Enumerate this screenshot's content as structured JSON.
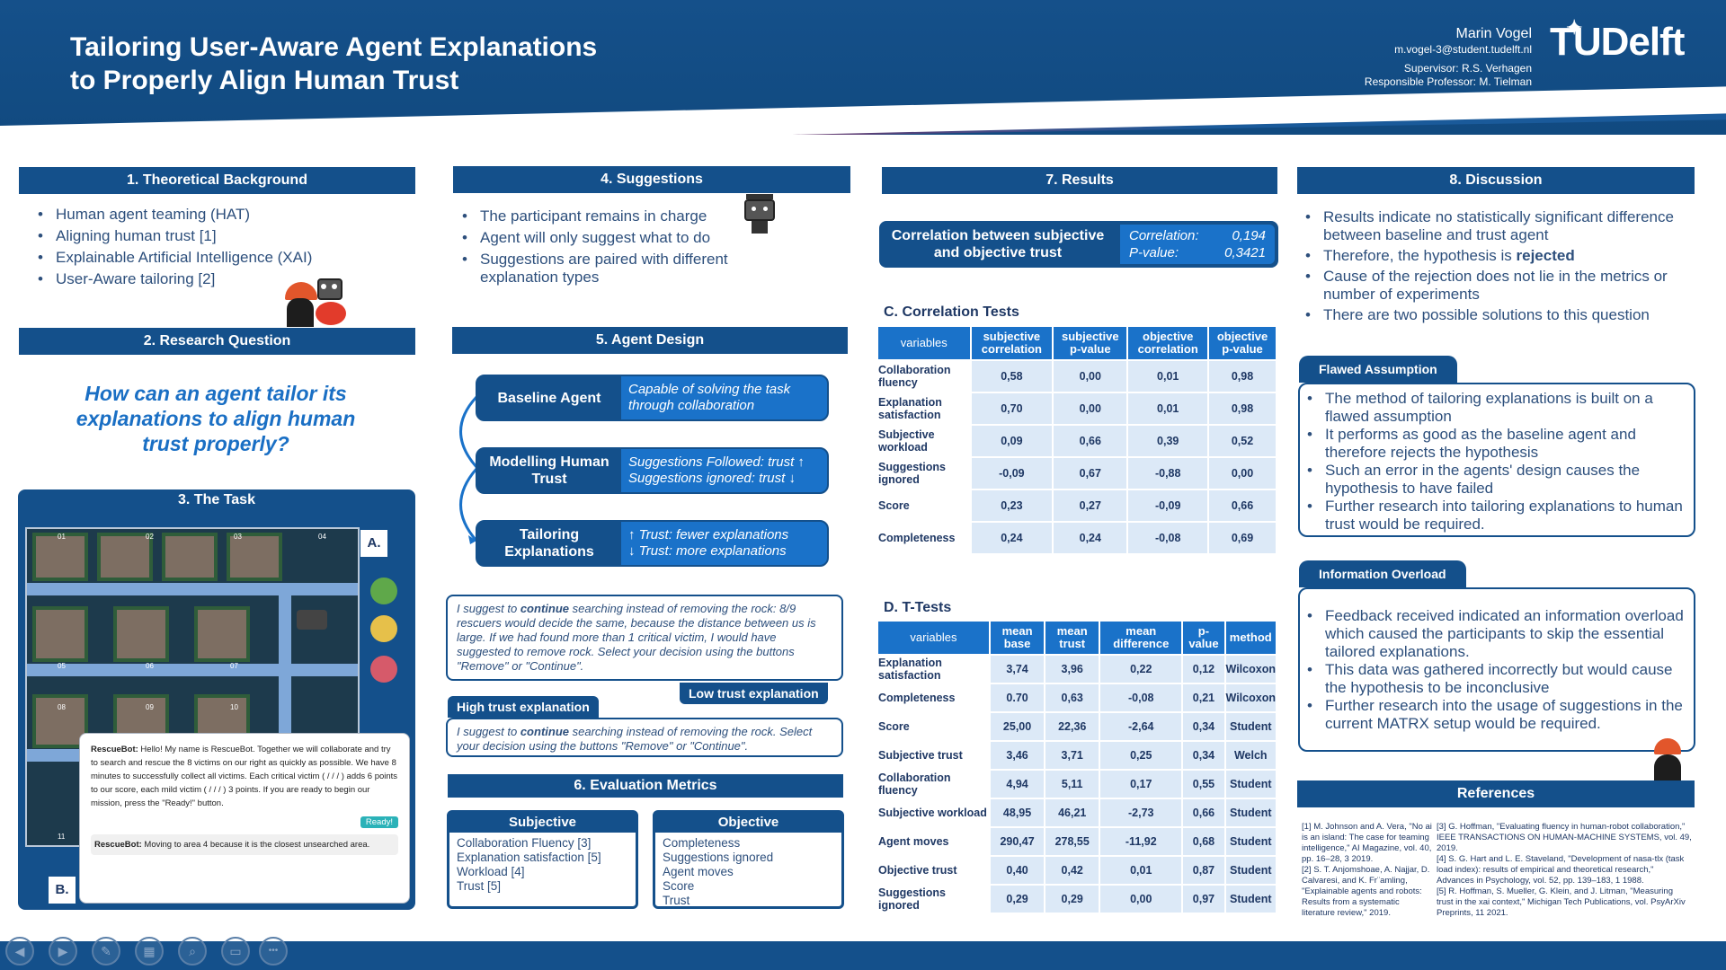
{
  "header": {
    "title_line1": "Tailoring User-Aware Agent Explanations",
    "title_line2": "to Properly Align Human Trust",
    "author": "Marin Vogel",
    "email": "m.vogel-3@student.tudelft.nl",
    "supervisor": "Supervisor: R.S. Verhagen",
    "professor": "Responsible Professor: M. Tielman",
    "logo": "TUDelft"
  },
  "s1": {
    "title": "1. Theoretical Background",
    "items": [
      "Human agent teaming (HAT)",
      "Aligning human trust [1]",
      "Explainable Artificial Intelligence (XAI)",
      "User-Aware tailoring [2]"
    ]
  },
  "s2": {
    "title": "2. Research Question",
    "question": "How can an agent tailor its explanations to align human trust properly?"
  },
  "s3": {
    "title": "3. The Task",
    "label_a": "A.",
    "label_b": "B.",
    "areas": [
      "01",
      "02",
      "03",
      "04",
      "05",
      "06",
      "07",
      "08",
      "09",
      "10",
      "11"
    ],
    "chat1_name": "RescueBot:",
    "chat1_text": " Hello! My name is RescueBot. Together we will collaborate and try to search and rescue the 8 victims on our right as quickly as possible. We have 8 minutes to successfully collect all victims. Each critical victim ( / / / ) adds 6 points to our score, each mild victim ( / / / ) 3 points. If you are ready to begin our mission, press the \"Ready!\" button.",
    "ready": "Ready!",
    "chat2_name": "RescueBot:",
    "chat2_text": " Moving to area 4 because it is the closest unsearched area."
  },
  "s4": {
    "title": "4. Suggestions",
    "items": [
      "The participant remains in charge",
      "Agent will only suggest what to do",
      "Suggestions are paired with different explanation types"
    ]
  },
  "s5": {
    "title": "5. Agent Design",
    "boxes": [
      {
        "left": "Baseline Agent",
        "right1": "Capable of solving the task",
        "right2": "through collaboration"
      },
      {
        "left": "Modelling Human Trust",
        "right1": "Suggestions Followed: trust ↑",
        "right2": "Suggestions ignored:   trust ↓"
      },
      {
        "left": "Tailoring Explanations",
        "right1": "↑ Trust: fewer explanations",
        "right2": "↓ Trust: more explanations"
      }
    ],
    "low_pre": "I suggest to ",
    "low_bold": "continue",
    "low_post": " searching instead of removing the rock: 8/9 rescuers would decide the same, because the distance between us is large. If we had found more than 1 critical victim, I would have suggested to remove rock. Select your decision using the buttons \"Remove\" or \"Continue\".",
    "low_tag": "Low trust explanation",
    "high_tag": "High trust explanation",
    "high_pre": "I suggest to ",
    "high_bold": "continue",
    "high_post": " searching instead of removing the rock. Select your decision using the buttons \"Remove\" or \"Continue\"."
  },
  "s6": {
    "title": "6. Evaluation Metrics",
    "subjective_title": "Subjective",
    "subjective": [
      "Collaboration Fluency [3]",
      "Explanation satisfaction [5]",
      "Workload [4]",
      "Trust [5]"
    ],
    "objective_title": "Objective",
    "objective": [
      "Completeness",
      "Suggestions ignored",
      "Agent moves",
      "Score",
      "Trust"
    ]
  },
  "s7": {
    "title": "7. Results",
    "corr_label": "Correlation between subjective and objective trust",
    "corr_value_label": "Correlation:",
    "corr_value": "0,194",
    "p_label": "P-value:",
    "p_value": "0,3421",
    "c_title": "C. Correlation Tests",
    "c_headers": [
      "variables",
      "subjective correlation",
      "subjective p-value",
      "objective correlation",
      "objective p-value"
    ],
    "c_rows": [
      [
        "Collaboration fluency",
        "0,58",
        "0,00",
        "0,01",
        "0,98"
      ],
      [
        "Explanation satisfaction",
        "0,70",
        "0,00",
        "0,01",
        "0,98"
      ],
      [
        "Subjective workload",
        "0,09",
        "0,66",
        "0,39",
        "0,52"
      ],
      [
        "Suggestions ignored",
        "-0,09",
        "0,67",
        "-0,88",
        "0,00"
      ],
      [
        "Score",
        "0,23",
        "0,27",
        "-0,09",
        "0,66"
      ],
      [
        "Completeness",
        "0,24",
        "0,24",
        "-0,08",
        "0,69"
      ]
    ],
    "d_title": "D. T-Tests",
    "d_headers": [
      "variables",
      "mean base",
      "mean trust",
      "mean difference",
      "p-value",
      "method"
    ],
    "d_rows": [
      [
        "Explanation satisfaction",
        "3,74",
        "3,96",
        "0,22",
        "0,12",
        "Wilcoxon"
      ],
      [
        "Completeness",
        "0.70",
        "0,63",
        "-0,08",
        "0,21",
        "Wilcoxon"
      ],
      [
        "Score",
        "25,00",
        "22,36",
        "-2,64",
        "0,34",
        "Student"
      ],
      [
        "Subjective trust",
        "3,46",
        "3,71",
        "0,25",
        "0,34",
        "Welch"
      ],
      [
        "Collaboration fluency",
        "4,94",
        "5,11",
        "0,17",
        "0,55",
        "Student"
      ],
      [
        "Subjective workload",
        "48,95",
        "46,21",
        "-2,73",
        "0,66",
        "Student"
      ],
      [
        "Agent moves",
        "290,47",
        "278,55",
        "-11,92",
        "0,68",
        "Student"
      ],
      [
        "Objective trust",
        "0,40",
        "0,42",
        "0,01",
        "0,87",
        "Student"
      ],
      [
        "Suggestions ignored",
        "0,29",
        "0,29",
        "0,00",
        "0,97",
        "Student"
      ]
    ]
  },
  "s8": {
    "title": "8. Discussion",
    "items": [
      "Results indicate no statistically significant difference between baseline and trust agent",
      "Cause of the rejection does not lie in the metrics or number of experiments",
      "There are two possible solutions to this question"
    ],
    "therefore_pre": "Therefore, the hypothesis is ",
    "therefore_bold": "rejected",
    "flawed_title": "Flawed Assumption",
    "flawed": [
      "The method of tailoring explanations is built on a flawed assumption",
      "It performs as good as the baseline agent and therefore rejects the hypothesis",
      "Such an error in the agents' design causes the hypothesis to have failed",
      "Further research into tailoring explanations to human trust would be required."
    ],
    "overload_title": "Information Overload",
    "overload": [
      "Feedback received indicated an information overload which caused the participants to skip the essential tailored explanations.",
      "This data was gathered incorrectly but would cause the hypothesis to be inconclusive",
      "Further research into the usage of suggestions in the current MATRX setup would be required."
    ]
  },
  "refs": {
    "title": "References",
    "col1": "[1] M. Johnson and A. Vera, \"No ai is an island: The case for teaming intelligence,\" AI Magazine, vol. 40, pp. 16–28, 3 2019.\n[2] S. T. Anjomshoae, A. Najjar, D. Calvaresi, and K. Fr¨amling, \"Explainable agents and robots: Results from a systematic literature review,\" 2019.",
    "col2": "[3] G. Hoffman, \"Evaluating fluency in human-robot collaboration,\" IEEE TRANSACTIONS ON HUMAN-MACHINE SYSTEMS, vol. 49, 2019.\n[4] S. G. Hart and L. E. Staveland, \"Development of nasa-tlx (task load index): results of empirical and theoretical research,\" Advances in Psychology, vol. 52, pp. 139–183, 1 1988.\n[5] R. Hoffman, S. Mueller, G. Klein, and J. Litman, \"Measuring trust in the xai context,\" Michigan Tech Publications, vol. PsyArXiv Preprints, 11 2021."
  },
  "controls": {
    "icons": [
      "prev-icon",
      "next-icon",
      "pen-icon",
      "slides-icon",
      "zoom-icon",
      "subtitles-icon",
      "more-icon"
    ],
    "glyphs": [
      "◀",
      "▶",
      "✎",
      "▦",
      "⌕",
      "▭",
      "•••"
    ]
  },
  "colors": {
    "primary": "#14508b",
    "accent": "#1a72c9",
    "cell": "#dce9f7",
    "stripe_red": "#c0392b"
  }
}
